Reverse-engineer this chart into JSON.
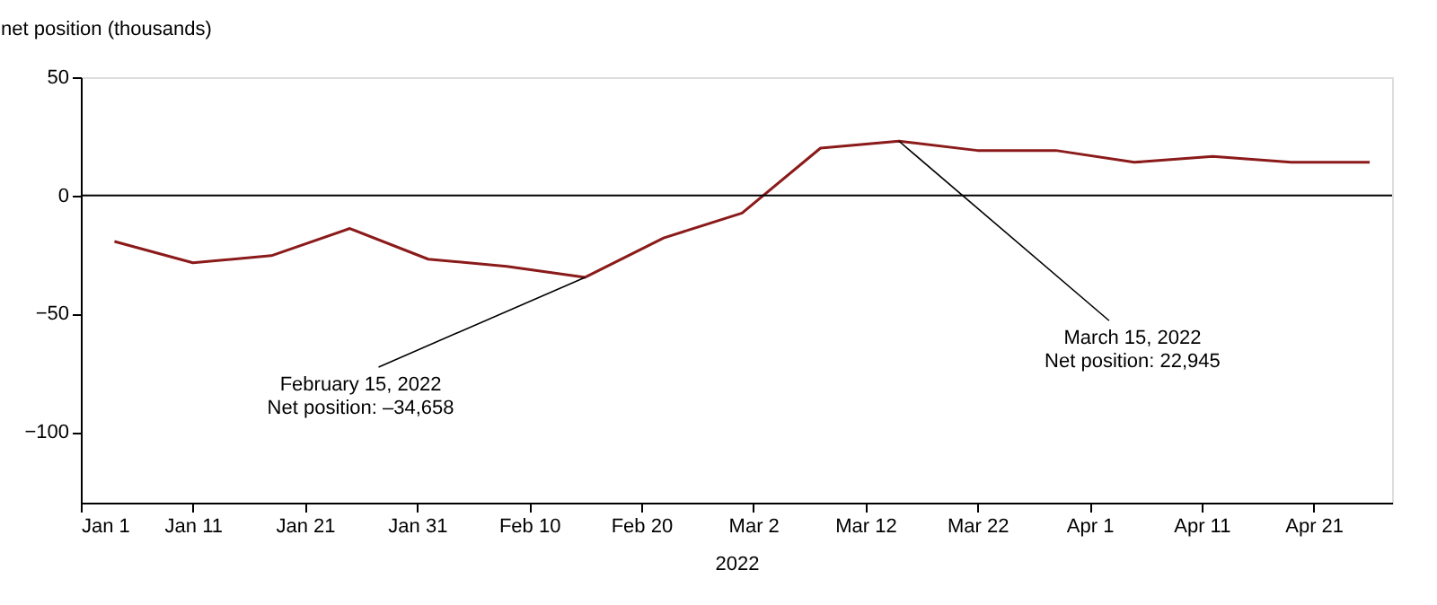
{
  "chart_data": {
    "type": "line",
    "ylabel": "net position (thousands)",
    "xlabel": "2022",
    "x": [
      "2022-01-04",
      "2022-01-11",
      "2022-01-18",
      "2022-01-25",
      "2022-02-01",
      "2022-02-08",
      "2022-02-15",
      "2022-02-22",
      "2022-03-01",
      "2022-03-08",
      "2022-03-15",
      "2022-03-22",
      "2022-03-29",
      "2022-04-05",
      "2022-04-12",
      "2022-04-19",
      "2022-04-26"
    ],
    "series": [
      {
        "color": "#8b1a1a",
        "values": [
          -19.5,
          -28.5,
          -25.5,
          -14,
          -27,
          -30,
          -34.658,
          -18,
          -7.5,
          20,
          22.945,
          19,
          19,
          14,
          16.5,
          14,
          14
        ]
      }
    ],
    "xlim": [
      "2022-01-01",
      "2022-04-28"
    ],
    "xticks": [
      {
        "value": "2022-01-01",
        "label": "Jan 1"
      },
      {
        "value": "2022-01-11",
        "label": "Jan 11"
      },
      {
        "value": "2022-01-21",
        "label": "Jan 21"
      },
      {
        "value": "2022-01-31",
        "label": "Jan 31"
      },
      {
        "value": "2022-02-10",
        "label": "Feb 10"
      },
      {
        "value": "2022-02-20",
        "label": "Feb 20"
      },
      {
        "value": "2022-03-02",
        "label": "Mar 2"
      },
      {
        "value": "2022-03-12",
        "label": "Mar 12"
      },
      {
        "value": "2022-03-22",
        "label": "Mar 22"
      },
      {
        "value": "2022-04-01",
        "label": "Apr 1"
      },
      {
        "value": "2022-04-11",
        "label": "Apr 11"
      },
      {
        "value": "2022-04-21",
        "label": "Apr 21"
      }
    ],
    "ylim": [
      -130,
      50
    ],
    "yticks": [
      50,
      0,
      -50,
      -100
    ],
    "ref_lines": [
      {
        "axis": "y",
        "value": 0,
        "color": "#000000"
      }
    ],
    "annotations": [
      {
        "text": "February 15, 2022\nNet position: –34,658",
        "x": "2022-02-15",
        "y": -34.658
      },
      {
        "text": "March 15, 2022\nNet position: 22,945",
        "x": "2022-03-15",
        "y": 22.945
      }
    ],
    "marker": "none",
    "line_style": "solid"
  }
}
